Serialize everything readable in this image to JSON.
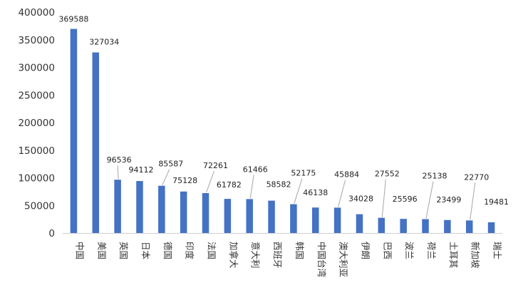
{
  "chart_data": {
    "type": "bar",
    "title": "",
    "xlabel": "",
    "ylabel": "",
    "ylim": [
      0,
      400000
    ],
    "yticks": [
      0,
      50000,
      100000,
      150000,
      200000,
      250000,
      300000,
      350000,
      400000
    ],
    "ytick_labels": [
      "0",
      "50000",
      "100000",
      "150000",
      "200000",
      "250000",
      "300000",
      "350000",
      "400000"
    ],
    "grid": false,
    "legend": "none",
    "color": "#4472C4",
    "categories": [
      "中国",
      "美国",
      "英国",
      "日本",
      "德国",
      "印度",
      "法国",
      "加拿大",
      "意大利",
      "西班牙",
      "韩国",
      "中国台湾",
      "澳大利亚",
      "伊朗",
      "巴西",
      "波兰",
      "荷兰",
      "土耳其",
      "新加坡",
      "瑞士"
    ],
    "values": [
      369588,
      327034,
      96536,
      94112,
      85587,
      75128,
      72261,
      61782,
      61466,
      58582,
      52175,
      46138,
      45884,
      34028,
      27552,
      25596,
      25138,
      23499,
      22770,
      19481
    ],
    "value_labels": [
      "369588",
      "327034",
      "96536",
      "94112",
      "85587",
      "75128",
      "72261",
      "61782",
      "61466",
      "58582",
      "52175",
      "46138",
      "45884",
      "34028",
      "27552",
      "25596",
      "25138",
      "23499",
      "22770",
      "19481"
    ]
  }
}
